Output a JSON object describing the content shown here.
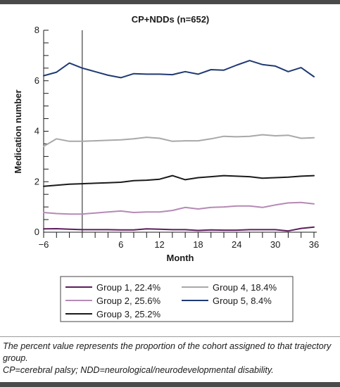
{
  "chart_data": {
    "type": "line",
    "title": "CP+NDDs (n=652)",
    "xlabel": "Month",
    "ylabel": "Medication number",
    "xlim": [
      -6,
      36
    ],
    "ylim": [
      0,
      8
    ],
    "xticks": [
      -6,
      6,
      12,
      18,
      24,
      30,
      36
    ],
    "xtick_labels": [
      "−6",
      "6",
      "12",
      "18",
      "24",
      "30",
      "36"
    ],
    "yticks": [
      0,
      2,
      4,
      6,
      8
    ],
    "grid": false,
    "legend_position": "bottom",
    "reference_line_x": 0,
    "x": [
      -6,
      -4,
      -2,
      0,
      2,
      4,
      6,
      8,
      10,
      12,
      14,
      16,
      18,
      20,
      22,
      24,
      26,
      28,
      30,
      32,
      34,
      36
    ],
    "series": [
      {
        "name": "Group 1, 22.4%",
        "color": "#5c1e5c",
        "values": [
          0.13,
          0.14,
          0.12,
          0.1,
          0.1,
          0.1,
          0.09,
          0.09,
          0.13,
          0.12,
          0.1,
          0.1,
          0.07,
          0.09,
          0.08,
          0.08,
          0.1,
          0.1,
          0.1,
          0.05,
          0.15,
          0.2
        ]
      },
      {
        "name": "Group 2, 25.6%",
        "color": "#b58ab5",
        "values": [
          0.78,
          0.74,
          0.72,
          0.72,
          0.76,
          0.8,
          0.84,
          0.78,
          0.8,
          0.8,
          0.86,
          0.98,
          0.92,
          0.98,
          1.0,
          1.04,
          1.04,
          0.98,
          1.08,
          1.16,
          1.18,
          1.12
        ]
      },
      {
        "name": "Group 3, 25.2%",
        "color": "#1a1a1a",
        "values": [
          1.82,
          1.86,
          1.9,
          1.92,
          1.94,
          1.96,
          1.98,
          2.04,
          2.06,
          2.1,
          2.24,
          2.08,
          2.16,
          2.2,
          2.24,
          2.22,
          2.2,
          2.14,
          2.16,
          2.18,
          2.22,
          2.24
        ]
      },
      {
        "name": "Group 4, 18.4%",
        "color": "#a8a8a8",
        "values": [
          3.4,
          3.7,
          3.6,
          3.6,
          3.62,
          3.64,
          3.66,
          3.7,
          3.76,
          3.72,
          3.6,
          3.62,
          3.62,
          3.7,
          3.8,
          3.78,
          3.8,
          3.86,
          3.82,
          3.84,
          3.72,
          3.74
        ]
      },
      {
        "name": "Group 5, 8.4%",
        "color": "#1f3a73",
        "values": [
          6.2,
          6.34,
          6.7,
          6.5,
          6.36,
          6.22,
          6.12,
          6.28,
          6.26,
          6.26,
          6.24,
          6.36,
          6.26,
          6.44,
          6.42,
          6.62,
          6.8,
          6.64,
          6.58,
          6.36,
          6.52,
          6.16
        ]
      }
    ]
  },
  "footnotes": {
    "line1": "The percent value represents the proportion of the cohort assigned to that trajectory group.",
    "line2": "CP=cerebral palsy; NDD=neurological/neurodevelopmental disability."
  }
}
